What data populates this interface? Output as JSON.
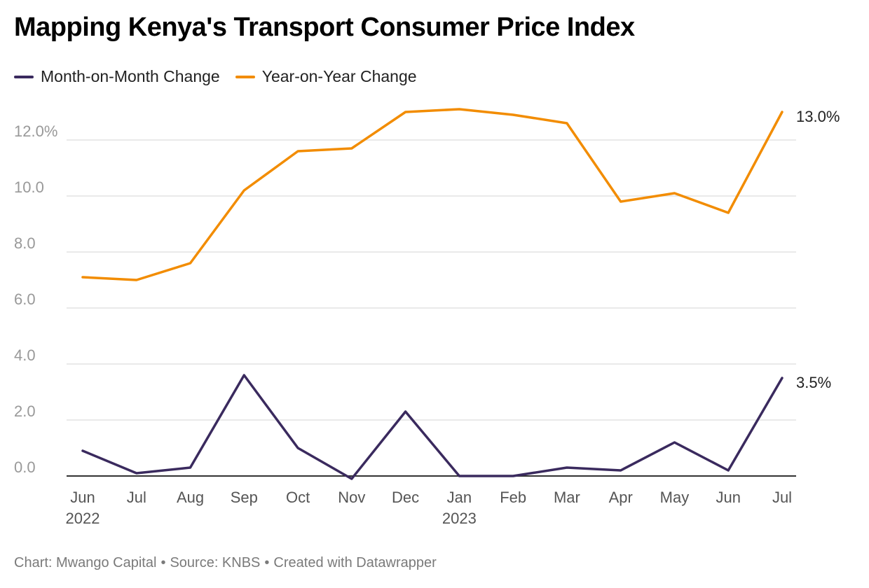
{
  "title": "Mapping Kenya's Transport Consumer Price Index",
  "legend": [
    {
      "name": "Month-on-Month Change",
      "color": "#3a2a5e"
    },
    {
      "name": "Year-on-Year Change",
      "color": "#f28c00"
    }
  ],
  "footer": {
    "chart_credit": "Chart: Mwango Capital",
    "source": "Source: KNBS",
    "created": "Created with Datawrapper",
    "separator": "•"
  },
  "chart_data": {
    "type": "line",
    "title": "Mapping Kenya's Transport Consumer Price Index",
    "x": [
      "Jun",
      "Jul",
      "Aug",
      "Sep",
      "Oct",
      "Nov",
      "Dec",
      "Jan",
      "Feb",
      "Mar",
      "Apr",
      "May",
      "Jun",
      "Jul"
    ],
    "x_year_labels": [
      {
        "index": 0,
        "label": "2022"
      },
      {
        "index": 7,
        "label": "2023"
      }
    ],
    "series": [
      {
        "name": "Month-on-Month Change",
        "color": "#3a2a5e",
        "values": [
          0.9,
          0.1,
          0.3,
          3.6,
          1.0,
          -0.1,
          2.3,
          0.0,
          0.0,
          0.3,
          0.2,
          1.2,
          0.2,
          3.5
        ],
        "end_label": "3.5%"
      },
      {
        "name": "Year-on-Year Change",
        "color": "#f28c00",
        "values": [
          7.1,
          7.0,
          7.6,
          10.2,
          11.6,
          11.7,
          13.0,
          13.1,
          12.9,
          12.6,
          9.8,
          10.1,
          9.4,
          13.0
        ],
        "end_label": "13.0%"
      }
    ],
    "yticks": [
      0,
      2,
      4,
      6,
      8,
      10,
      12
    ],
    "ytick_labels": [
      "0.0",
      "2.0",
      "4.0",
      "6.0",
      "8.0",
      "10.0",
      "12.0%"
    ],
    "ylim": [
      0,
      13.0
    ],
    "grid": true,
    "legend_position": "top-left"
  }
}
